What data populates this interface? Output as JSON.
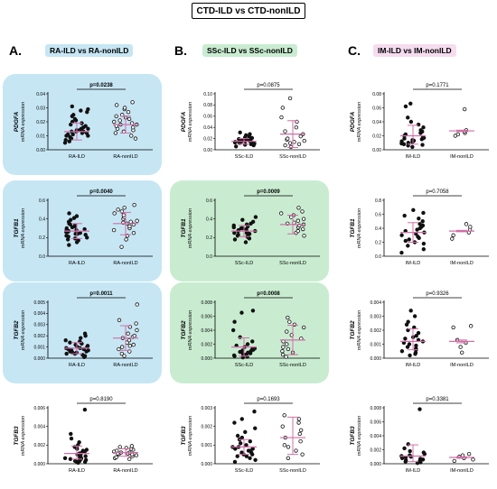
{
  "title": "CTD-ILD vs CTD-nonILD",
  "colors": {
    "blue_panel": "#c6e6f4",
    "green_panel": "#c9ecd1",
    "pink_header": "#f6dcef",
    "error_bar": "#d16fa6"
  },
  "columns": [
    {
      "letter": "A.",
      "title": "RA-ILD vs RA-nonILD",
      "header_color": "#c6e6f4"
    },
    {
      "letter": "B.",
      "title": "SSc-ILD vs SSc-nonILD",
      "header_color": "#c9ecd1"
    },
    {
      "letter": "C.",
      "title": "IM-ILD vs IM-nonILD",
      "header_color": "#f6dcef"
    }
  ],
  "chart_data": [
    {
      "type": "scatter",
      "col": 0,
      "row": 0,
      "panel": "blue",
      "ylabel": "PDGFA",
      "ylabel2": "mRNA expression",
      "p": "p=0.0238",
      "sig": true,
      "categories": [
        "RA-ILD",
        "RA-nonILD"
      ],
      "yticks": [
        "0.00",
        "0.01",
        "0.02",
        "0.03",
        "0.04"
      ],
      "ylim": [
        0,
        0.04
      ],
      "groups": [
        {
          "filled": true,
          "mean": 0.013,
          "sd_low": 0.007,
          "sd_high": 0.019,
          "values": [
            0.005,
            0.006,
            0.007,
            0.008,
            0.009,
            0.01,
            0.01,
            0.011,
            0.011,
            0.012,
            0.012,
            0.013,
            0.013,
            0.013,
            0.014,
            0.014,
            0.015,
            0.015,
            0.016,
            0.017,
            0.018,
            0.019,
            0.02,
            0.021,
            0.022,
            0.024,
            0.025,
            0.027,
            0.028,
            0.029,
            0.031
          ]
        },
        {
          "filled": false,
          "mean": 0.018,
          "sd_low": 0.012,
          "sd_high": 0.024,
          "values": [
            0.008,
            0.01,
            0.012,
            0.013,
            0.014,
            0.015,
            0.016,
            0.017,
            0.018,
            0.018,
            0.019,
            0.02,
            0.021,
            0.022,
            0.023,
            0.024,
            0.025,
            0.027,
            0.029,
            0.03,
            0.032,
            0.034
          ]
        }
      ]
    },
    {
      "type": "scatter",
      "col": 0,
      "row": 1,
      "panel": "blue",
      "ylabel": "TGFB1",
      "ylabel2": "mRNA expression",
      "p": "p=0.0040",
      "sig": true,
      "categories": [
        "RA-ILD",
        "RA-nonILD"
      ],
      "yticks": [
        "0.0",
        "0.2",
        "0.4",
        "0.6"
      ],
      "ylim": [
        0,
        0.6
      ],
      "groups": [
        {
          "filled": true,
          "mean": 0.27,
          "sd_low": 0.19,
          "sd_high": 0.35,
          "values": [
            0.12,
            0.15,
            0.17,
            0.18,
            0.19,
            0.2,
            0.21,
            0.22,
            0.23,
            0.24,
            0.24,
            0.25,
            0.26,
            0.26,
            0.27,
            0.28,
            0.28,
            0.29,
            0.3,
            0.31,
            0.32,
            0.33,
            0.34,
            0.35,
            0.37,
            0.39,
            0.41,
            0.43,
            0.46
          ]
        },
        {
          "filled": false,
          "mean": 0.35,
          "sd_low": 0.23,
          "sd_high": 0.47,
          "values": [
            0.1,
            0.18,
            0.22,
            0.25,
            0.28,
            0.3,
            0.32,
            0.34,
            0.35,
            0.36,
            0.37,
            0.38,
            0.4,
            0.42,
            0.44,
            0.46,
            0.48,
            0.5,
            0.52,
            0.55
          ]
        }
      ]
    },
    {
      "type": "scatter",
      "col": 0,
      "row": 2,
      "panel": "blue",
      "ylabel": "TGFB2",
      "ylabel2": "mRNA expression",
      "p": "p=0.0011",
      "sig": true,
      "categories": [
        "RA-ILD",
        "RA-nonILD"
      ],
      "yticks": [
        "0.000",
        "0.001",
        "0.002",
        "0.003",
        "0.004",
        "0.005"
      ],
      "ylim": [
        0,
        0.005
      ],
      "groups": [
        {
          "filled": true,
          "mean": 0.0009,
          "sd_low": 0.0004,
          "sd_high": 0.0014,
          "values": [
            0.0001,
            0.0002,
            0.0003,
            0.0004,
            0.0004,
            0.0005,
            0.0005,
            0.0006,
            0.0006,
            0.0007,
            0.0007,
            0.0008,
            0.0008,
            0.0009,
            0.0009,
            0.001,
            0.001,
            0.0011,
            0.0012,
            0.0013,
            0.0014,
            0.0015,
            0.0016,
            0.0018,
            0.002,
            0.0022
          ]
        },
        {
          "filled": false,
          "mean": 0.0018,
          "sd_low": 0.0007,
          "sd_high": 0.0029,
          "values": [
            0.0002,
            0.0004,
            0.0006,
            0.0008,
            0.001,
            0.0011,
            0.0012,
            0.0014,
            0.0016,
            0.0018,
            0.0019,
            0.002,
            0.0022,
            0.0025,
            0.0028,
            0.0031,
            0.0034,
            0.0048
          ]
        }
      ]
    },
    {
      "type": "scatter",
      "col": 0,
      "row": 3,
      "panel": "none",
      "ylabel": "TGFB3",
      "ylabel2": "mRNA expression",
      "p": "p=0.8190",
      "sig": false,
      "categories": [
        "RA-ILD",
        "RA-nonILD"
      ],
      "yticks": [
        "0.000",
        "0.002",
        "0.004",
        "0.006"
      ],
      "ylim": [
        0,
        0.006
      ],
      "groups": [
        {
          "filled": true,
          "mean": 0.0011,
          "sd_low": 0.0005,
          "sd_high": 0.0019,
          "values": [
            0.0001,
            0.0002,
            0.0002,
            0.0003,
            0.0003,
            0.0004,
            0.0004,
            0.0005,
            0.0005,
            0.0006,
            0.0006,
            0.0007,
            0.0008,
            0.0009,
            0.001,
            0.0011,
            0.0012,
            0.0013,
            0.0014,
            0.0015,
            0.0016,
            0.0018,
            0.002,
            0.0023,
            0.0027,
            0.0032,
            0.0058
          ]
        },
        {
          "filled": false,
          "mean": 0.0012,
          "sd_low": 0.0008,
          "sd_high": 0.0016,
          "values": [
            0.0005,
            0.0006,
            0.0007,
            0.0008,
            0.0009,
            0.001,
            0.001,
            0.0011,
            0.0011,
            0.0012,
            0.0012,
            0.0013,
            0.0014,
            0.0015,
            0.0016,
            0.0017,
            0.0018,
            0.0019
          ]
        }
      ]
    },
    {
      "type": "scatter",
      "col": 1,
      "row": 0,
      "panel": "none",
      "ylabel": "PDGFA",
      "ylabel2": "mRNA expression",
      "p": "p=0.0875",
      "sig": false,
      "categories": [
        "SSc-ILD",
        "SSc-nonILD"
      ],
      "yticks": [
        "0.00",
        "0.02",
        "0.04",
        "0.06",
        "0.08",
        "0.10"
      ],
      "ylim": [
        0,
        0.1
      ],
      "groups": [
        {
          "filled": true,
          "mean": 0.015,
          "sd_low": 0.01,
          "sd_high": 0.02,
          "values": [
            0.006,
            0.008,
            0.009,
            0.01,
            0.01,
            0.011,
            0.012,
            0.012,
            0.013,
            0.013,
            0.014,
            0.014,
            0.015,
            0.015,
            0.016,
            0.016,
            0.017,
            0.018,
            0.019,
            0.02,
            0.021,
            0.022,
            0.024,
            0.026,
            0.028,
            0.031
          ]
        },
        {
          "filled": false,
          "mean": 0.028,
          "sd_low": 0.004,
          "sd_high": 0.052,
          "values": [
            0.005,
            0.008,
            0.01,
            0.012,
            0.014,
            0.016,
            0.018,
            0.02,
            0.024,
            0.028,
            0.033,
            0.04,
            0.05,
            0.058,
            0.075,
            0.092
          ]
        }
      ]
    },
    {
      "type": "scatter",
      "col": 1,
      "row": 1,
      "panel": "green",
      "ylabel": "TGFB1",
      "ylabel2": "mRNA expression",
      "p": "p=0.0009",
      "sig": true,
      "categories": [
        "SSc-ILD",
        "SSc-nonILD"
      ],
      "yticks": [
        "0.0",
        "0.2",
        "0.4",
        "0.6"
      ],
      "ylim": [
        0,
        0.6
      ],
      "groups": [
        {
          "filled": true,
          "mean": 0.27,
          "sd_low": 0.21,
          "sd_high": 0.33,
          "values": [
            0.15,
            0.18,
            0.19,
            0.2,
            0.21,
            0.22,
            0.23,
            0.24,
            0.25,
            0.25,
            0.26,
            0.27,
            0.27,
            0.28,
            0.29,
            0.3,
            0.3,
            0.31,
            0.32,
            0.33,
            0.34,
            0.35,
            0.37,
            0.39,
            0.42
          ]
        },
        {
          "filled": false,
          "mean": 0.34,
          "sd_low": 0.24,
          "sd_high": 0.44,
          "values": [
            0.22,
            0.25,
            0.27,
            0.29,
            0.31,
            0.33,
            0.34,
            0.35,
            0.36,
            0.38,
            0.4,
            0.42,
            0.44,
            0.46,
            0.48,
            0.52
          ]
        }
      ]
    },
    {
      "type": "scatter",
      "col": 1,
      "row": 2,
      "panel": "green",
      "ylabel": "TGFB2",
      "ylabel2": "mRNA expression",
      "p": "p=0.0008",
      "sig": true,
      "categories": [
        "SSc-ILD",
        "SSc-nonILD"
      ],
      "yticks": [
        "0.000",
        "0.002",
        "0.004",
        "0.006",
        "0.008"
      ],
      "ylim": [
        0,
        0.008
      ],
      "groups": [
        {
          "filled": true,
          "mean": 0.0016,
          "sd_low": 0.0003,
          "sd_high": 0.0029,
          "values": [
            0.0001,
            0.0002,
            0.0003,
            0.0004,
            0.0005,
            0.0006,
            0.0007,
            0.0008,
            0.0009,
            0.001,
            0.0011,
            0.0012,
            0.0013,
            0.0014,
            0.0016,
            0.0018,
            0.002,
            0.0024,
            0.003,
            0.004,
            0.0052,
            0.0065,
            0.0068
          ]
        },
        {
          "filled": false,
          "mean": 0.0026,
          "sd_low": 0.0005,
          "sd_high": 0.0047,
          "values": [
            0.0002,
            0.0005,
            0.0008,
            0.001,
            0.0013,
            0.0016,
            0.002,
            0.0024,
            0.0028,
            0.0033,
            0.0038,
            0.0044,
            0.0048,
            0.0052,
            0.0058
          ]
        }
      ]
    },
    {
      "type": "scatter",
      "col": 1,
      "row": 3,
      "panel": "none",
      "ylabel": "TGFB3",
      "ylabel2": "mRNA expression",
      "p": "p=0.1693",
      "sig": false,
      "categories": [
        "SSc-ILD",
        "SSc-nonILD"
      ],
      "yticks": [
        "0.000",
        "0.001",
        "0.002",
        "0.003"
      ],
      "ylim": [
        0,
        0.003
      ],
      "groups": [
        {
          "filled": true,
          "mean": 0.0009,
          "sd_low": 0.0005,
          "sd_high": 0.0013,
          "values": [
            0.0001,
            0.0002,
            0.0003,
            0.0004,
            0.0004,
            0.0005,
            0.0005,
            0.0006,
            0.0006,
            0.0007,
            0.0007,
            0.0008,
            0.0008,
            0.0009,
            0.0009,
            0.001,
            0.0011,
            0.0012,
            0.0013,
            0.0014,
            0.0015,
            0.0017,
            0.0019,
            0.0022,
            0.0024,
            0.0028
          ]
        },
        {
          "filled": false,
          "mean": 0.0014,
          "sd_low": 0.0005,
          "sd_high": 0.0025,
          "values": [
            0.0003,
            0.0005,
            0.0007,
            0.0009,
            0.001,
            0.0012,
            0.0014,
            0.0016,
            0.0018,
            0.002,
            0.0022,
            0.0024,
            0.0026
          ]
        }
      ]
    },
    {
      "type": "scatter",
      "col": 2,
      "row": 0,
      "panel": "none",
      "ylabel": "PDGFA",
      "ylabel2": "mRNA expression",
      "p": "p=0.1771",
      "sig": false,
      "categories": [
        "IM-ILD",
        "IM-nonILD"
      ],
      "yticks": [
        "0.00",
        "0.02",
        "0.04",
        "0.06",
        "0.08"
      ],
      "ylim": [
        0,
        0.08
      ],
      "groups": [
        {
          "filled": true,
          "mean": 0.02,
          "sd_low": 0.008,
          "sd_high": 0.035,
          "values": [
            0.004,
            0.006,
            0.007,
            0.008,
            0.009,
            0.01,
            0.011,
            0.012,
            0.013,
            0.014,
            0.015,
            0.016,
            0.017,
            0.018,
            0.02,
            0.022,
            0.024,
            0.026,
            0.028,
            0.032,
            0.036,
            0.04,
            0.046,
            0.062,
            0.066
          ]
        },
        {
          "filled": false,
          "mean": 0.027,
          "sd_low": 0.026,
          "sd_high": 0.028,
          "values": [
            0.02,
            0.022,
            0.024,
            0.026,
            0.028,
            0.058
          ]
        }
      ]
    },
    {
      "type": "scatter",
      "col": 2,
      "row": 1,
      "panel": "none",
      "ylabel": "TGFB1",
      "ylabel2": "mRNA expression",
      "p": "p=0.7058",
      "sig": false,
      "categories": [
        "IM-ILD",
        "IM-nonILD"
      ],
      "yticks": [
        "0.0",
        "0.2",
        "0.4",
        "0.6",
        "0.8"
      ],
      "ylim": [
        0,
        0.8
      ],
      "groups": [
        {
          "filled": true,
          "mean": 0.34,
          "sd_low": 0.2,
          "sd_high": 0.48,
          "values": [
            0.05,
            0.1,
            0.15,
            0.18,
            0.2,
            0.22,
            0.24,
            0.26,
            0.28,
            0.3,
            0.32,
            0.34,
            0.36,
            0.38,
            0.4,
            0.42,
            0.44,
            0.46,
            0.5,
            0.54,
            0.58,
            0.62,
            0.66
          ]
        },
        {
          "filled": false,
          "mean": 0.36,
          "sd_low": 0.35,
          "sd_high": 0.37,
          "values": [
            0.25,
            0.3,
            0.34,
            0.38,
            0.42,
            0.46
          ]
        }
      ]
    },
    {
      "type": "scatter",
      "col": 2,
      "row": 2,
      "panel": "none",
      "ylabel": "TGFB2",
      "ylabel2": "mRNA expression",
      "p": "p=0.9326",
      "sig": false,
      "categories": [
        "IM-ILD",
        "IM-nonILD"
      ],
      "yticks": [
        "0.000",
        "0.001",
        "0.002",
        "0.003",
        "0.004"
      ],
      "ylim": [
        0,
        0.004
      ],
      "groups": [
        {
          "filled": true,
          "mean": 0.0012,
          "sd_low": 0.0006,
          "sd_high": 0.0021,
          "values": [
            0.0002,
            0.0003,
            0.0004,
            0.0005,
            0.0006,
            0.0007,
            0.0008,
            0.0009,
            0.001,
            0.0011,
            0.0012,
            0.0013,
            0.0014,
            0.0015,
            0.0016,
            0.0018,
            0.002,
            0.0022,
            0.0024,
            0.0026,
            0.003,
            0.0034
          ]
        },
        {
          "filled": false,
          "mean": 0.0012,
          "sd_low": 0.0011,
          "sd_high": 0.0013,
          "values": [
            0.0004,
            0.0008,
            0.0011,
            0.0013,
            0.0022,
            0.0023
          ]
        }
      ]
    },
    {
      "type": "scatter",
      "col": 2,
      "row": 3,
      "panel": "none",
      "ylabel": "TGFB3",
      "ylabel2": "mRNA expression",
      "p": "p=0.3381",
      "sig": false,
      "categories": [
        "IM-ILD",
        "IM-nonILD"
      ],
      "yticks": [
        "0.000",
        "0.002",
        "0.004",
        "0.006",
        "0.008"
      ],
      "ylim": [
        0,
        0.008
      ],
      "groups": [
        {
          "filled": true,
          "mean": 0.0011,
          "sd_low": 0.0003,
          "sd_high": 0.0027,
          "values": [
            0.0001,
            0.0002,
            0.0003,
            0.0004,
            0.0005,
            0.0006,
            0.0007,
            0.0008,
            0.0009,
            0.001,
            0.0011,
            0.0012,
            0.0014,
            0.0016,
            0.0018,
            0.0022,
            0.0028,
            0.0078
          ]
        },
        {
          "filled": false,
          "mean": 0.0009,
          "sd_low": 0.0008,
          "sd_high": 0.001,
          "values": [
            0.0004,
            0.0006,
            0.0008,
            0.001,
            0.0012,
            0.0014
          ]
        }
      ]
    }
  ]
}
